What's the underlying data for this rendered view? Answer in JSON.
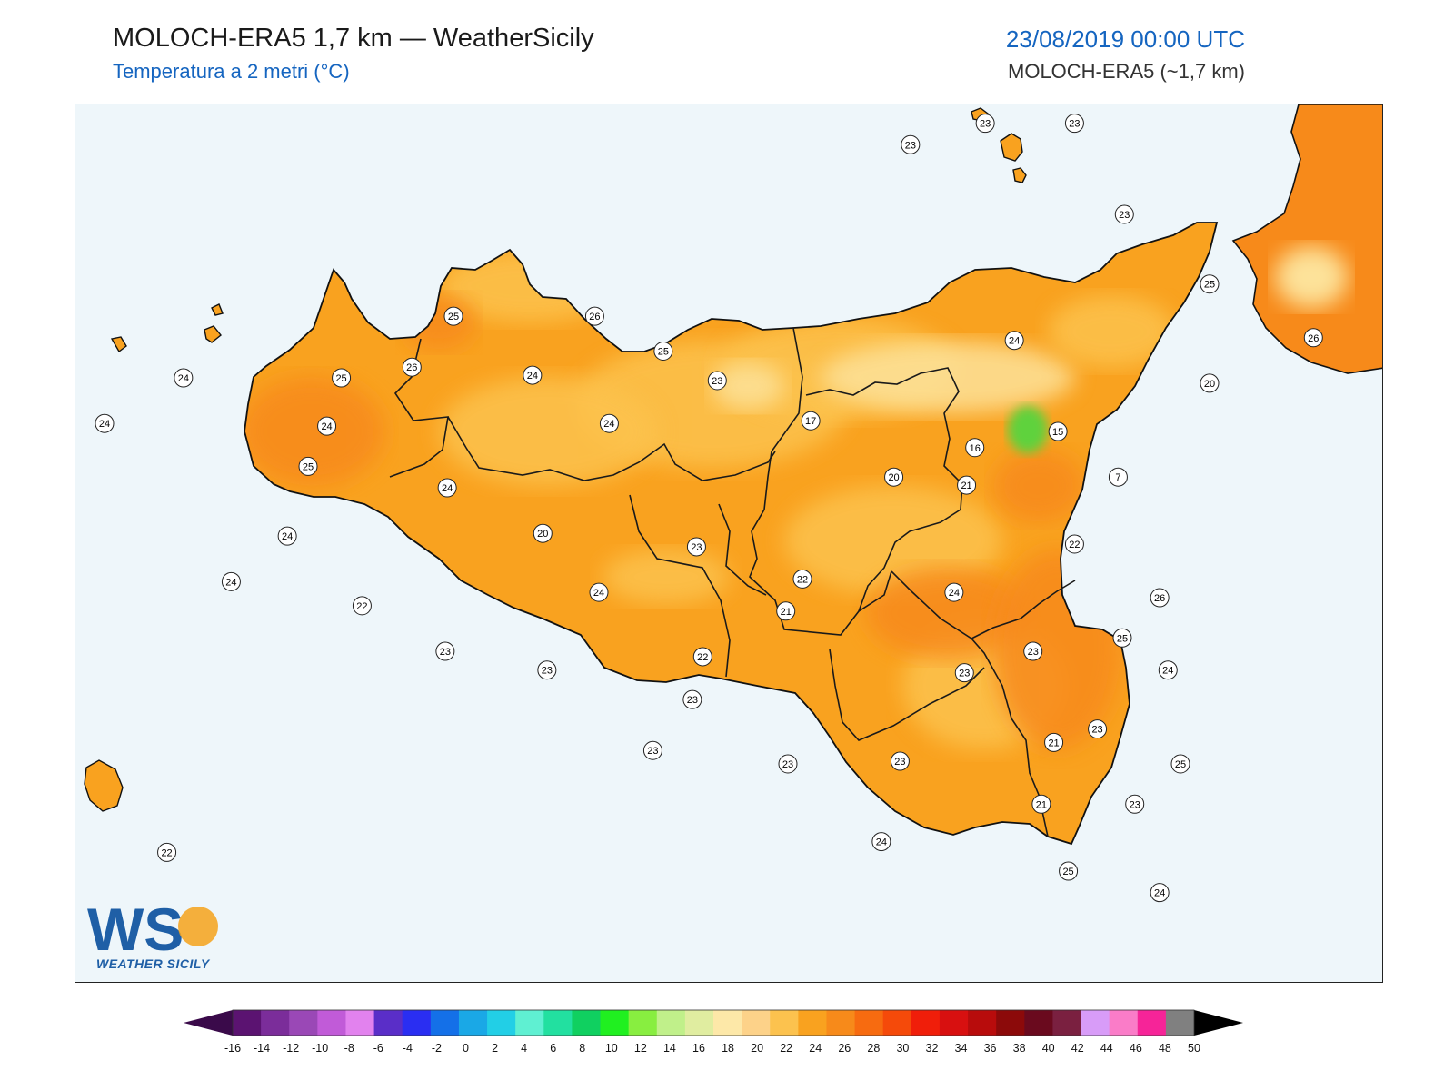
{
  "header": {
    "title": "MOLOCH-ERA5 1,7 km — WeatherSicily",
    "subtitle": "Temperatura a 2 metri (°C)",
    "datetime": "23/08/2019 00:00 UTC",
    "model": "MOLOCH-ERA5 (~1,7 km)"
  },
  "logo": {
    "letters": "WS",
    "text": "WEATHER SICILY"
  },
  "colors": {
    "sea": "#eef6fa",
    "land_base": "#f9a21f",
    "land_warm": "#f78a1a",
    "land_cool": "#fcc24e",
    "land_cold": "#fde29a",
    "peak_green": "#5fd23c",
    "boundary": "#1a1a1a"
  },
  "colorbar": {
    "ticks": [
      "-16",
      "-14",
      "-12",
      "-10",
      "-8",
      "-6",
      "-4",
      "-2",
      "0",
      "2",
      "4",
      "6",
      "8",
      "10",
      "12",
      "14",
      "16",
      "18",
      "20",
      "22",
      "24",
      "26",
      "28",
      "30",
      "32",
      "34",
      "36",
      "38",
      "40",
      "42",
      "44",
      "46",
      "48",
      "50"
    ],
    "colors": [
      "#3a0a4a",
      "#5b1371",
      "#7b2d9a",
      "#9a48b6",
      "#c15bd8",
      "#e282ee",
      "#5a2ec8",
      "#2a2ef2",
      "#1470e8",
      "#1aa8e6",
      "#22cfe6",
      "#5ff0d2",
      "#22e0a0",
      "#10d060",
      "#20f020",
      "#88ee40",
      "#c0f08a",
      "#e0eda0",
      "#fde8a8",
      "#fdd289",
      "#fcc24e",
      "#f9a21f",
      "#f78a1a",
      "#f76b10",
      "#f54a0a",
      "#f01e0a",
      "#d81010",
      "#b80c0c",
      "#8c0a0a",
      "#6a0a1e",
      "#7a2040",
      "#d89cf8",
      "#fa7cc8",
      "#f62498",
      "#808080",
      "#3a3a3a"
    ]
  },
  "stations": [
    {
      "v": "23",
      "lon": 12.92,
      "lat": 38.83
    },
    {
      "v": "23",
      "lon": 13.28,
      "lat": 38.91
    },
    {
      "v": "23",
      "lon": 13.71,
      "lat": 38.91
    },
    {
      "v": "23",
      "lon": 13.95,
      "lat": 38.57
    },
    {
      "v": "25",
      "lon": 14.36,
      "lat": 38.31
    },
    {
      "v": "26",
      "lon": 14.86,
      "lat": 38.11
    },
    {
      "v": "24",
      "lon": 13.42,
      "lat": 38.1
    },
    {
      "v": "20",
      "lon": 14.36,
      "lat": 37.94
    },
    {
      "v": "15",
      "lon": 13.63,
      "lat": 37.76
    },
    {
      "v": "16",
      "lon": 13.23,
      "lat": 37.7
    },
    {
      "v": "7",
      "lon": 13.92,
      "lat": 37.59
    },
    {
      "v": "24",
      "lon": 11.1,
      "lat": 37.97
    },
    {
      "v": "24",
      "lon": 10.11,
      "lat": 37.78
    },
    {
      "v": "25",
      "lon": 10.72,
      "lat": 38.19
    },
    {
      "v": "26",
      "lon": 11.4,
      "lat": 38.19
    },
    {
      "v": "26",
      "lon": 10.52,
      "lat": 38.0
    },
    {
      "v": "25",
      "lon": 10.18,
      "lat": 37.96
    },
    {
      "v": "25",
      "lon": 11.73,
      "lat": 38.06
    },
    {
      "v": "24",
      "lon": 9.42,
      "lat": 37.96
    },
    {
      "v": "24",
      "lon": 9.04,
      "lat": 37.79
    },
    {
      "v": "25",
      "lon": 10.02,
      "lat": 37.63
    },
    {
      "v": "23",
      "lon": 11.99,
      "lat": 37.95
    },
    {
      "v": "24",
      "lon": 11.47,
      "lat": 37.79
    },
    {
      "v": "17",
      "lon": 12.44,
      "lat": 37.8
    },
    {
      "v": "24",
      "lon": 10.69,
      "lat": 37.55
    },
    {
      "v": "20",
      "lon": 12.84,
      "lat": 37.59
    },
    {
      "v": "21",
      "lon": 13.19,
      "lat": 37.56
    },
    {
      "v": "24",
      "lon": 9.92,
      "lat": 37.37
    },
    {
      "v": "20",
      "lon": 11.15,
      "lat": 37.38
    },
    {
      "v": "23",
      "lon": 11.89,
      "lat": 37.33
    },
    {
      "v": "22",
      "lon": 13.71,
      "lat": 37.34
    },
    {
      "v": "24",
      "lon": 9.65,
      "lat": 37.2
    },
    {
      "v": "24",
      "lon": 11.42,
      "lat": 37.16
    },
    {
      "v": "22",
      "lon": 12.4,
      "lat": 37.21
    },
    {
      "v": "24",
      "lon": 13.13,
      "lat": 37.16
    },
    {
      "v": "26",
      "lon": 14.12,
      "lat": 37.14
    },
    {
      "v": "22",
      "lon": 10.28,
      "lat": 37.11
    },
    {
      "v": "21",
      "lon": 12.32,
      "lat": 37.09
    },
    {
      "v": "25",
      "lon": 13.94,
      "lat": 36.99
    },
    {
      "v": "23",
      "lon": 10.68,
      "lat": 36.94
    },
    {
      "v": "23",
      "lon": 13.51,
      "lat": 36.94
    },
    {
      "v": "22",
      "lon": 11.92,
      "lat": 36.92
    },
    {
      "v": "23",
      "lon": 11.17,
      "lat": 36.87
    },
    {
      "v": "24",
      "lon": 14.16,
      "lat": 36.87
    },
    {
      "v": "23",
      "lon": 13.18,
      "lat": 36.86
    },
    {
      "v": "23",
      "lon": 11.87,
      "lat": 36.76
    },
    {
      "v": "23",
      "lon": 13.82,
      "lat": 36.65
    },
    {
      "v": "21",
      "lon": 13.61,
      "lat": 36.6
    },
    {
      "v": "23",
      "lon": 11.68,
      "lat": 36.57
    },
    {
      "v": "23",
      "lon": 12.33,
      "lat": 36.52
    },
    {
      "v": "23",
      "lon": 12.87,
      "lat": 36.53
    },
    {
      "v": "25",
      "lon": 14.22,
      "lat": 36.52
    },
    {
      "v": "21",
      "lon": 13.55,
      "lat": 36.37
    },
    {
      "v": "23",
      "lon": 14.0,
      "lat": 36.37
    },
    {
      "v": "24",
      "lon": 12.78,
      "lat": 36.23
    },
    {
      "v": "25",
      "lon": 13.68,
      "lat": 36.12
    },
    {
      "v": "24",
      "lon": 14.12,
      "lat": 36.04
    },
    {
      "v": "22",
      "lon": 9.34,
      "lat": 36.19
    }
  ]
}
